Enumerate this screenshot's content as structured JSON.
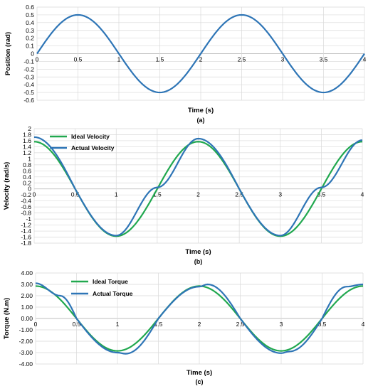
{
  "chart_data": [
    {
      "type": "line",
      "caption": "(a)",
      "xlabel": "Time (s)",
      "ylabel": "Position (rad)",
      "xlim": [
        0,
        4
      ],
      "ylim": [
        -0.6,
        0.6
      ],
      "yticks": [
        "0.6",
        "0.5",
        "0.4",
        "0.3",
        "0.2",
        "0.1",
        "0",
        "-0.1",
        "-0.2",
        "-0.3",
        "-0.4",
        "-0.5",
        "-0.6"
      ],
      "xticks": [
        "0",
        "0.5",
        "1",
        "1.5",
        "2",
        "2.5",
        "3",
        "3.5",
        "4"
      ],
      "grid": true,
      "legend": "none",
      "series": [
        {
          "color": "#2e75b6",
          "amplitude": 0.5,
          "phase_offset": 0,
          "waveform": "sin",
          "x": [
            0,
            0.5,
            1,
            1.5,
            2,
            2.5,
            3,
            3.5,
            4
          ],
          "y": [
            0,
            0.5,
            0,
            -0.5,
            0,
            0.5,
            0,
            -0.5,
            0
          ]
        }
      ]
    },
    {
      "type": "line",
      "caption": "(b)",
      "xlabel": "Time (s)",
      "ylabel": "Velocity (rad/s)",
      "xlim": [
        0,
        4
      ],
      "ylim": [
        -1.8,
        2
      ],
      "yticks": [
        "2",
        "1.8",
        "1.6",
        "1.4",
        "1.2",
        "1",
        "0.8",
        "0.6",
        "0.4",
        "0.2",
        "0",
        "-0.2",
        "-0.4",
        "-0.6",
        "-0.8",
        "-1",
        "-1.2",
        "-1.4",
        "-1.6",
        "-1.8"
      ],
      "xticks": [
        "0",
        "0.5",
        "1",
        "1.5",
        "2",
        "2.5",
        "3",
        "3.5",
        "4"
      ],
      "grid": true,
      "legend": "top-left",
      "series": [
        {
          "name": "Ideal Velocity",
          "color": "#21a84f",
          "amplitude": 1.57,
          "waveform": "cos",
          "x": [
            0,
            0.5,
            1,
            1.5,
            2,
            2.5,
            3,
            3.5,
            4
          ],
          "y": [
            1.57,
            0,
            -1.57,
            0,
            1.57,
            0,
            -1.57,
            0,
            1.57
          ]
        },
        {
          "name": "Actual Velocity",
          "color": "#2e75b6",
          "amplitude": 1.6,
          "waveform": "cos",
          "x": [
            0,
            0.5,
            1,
            1.5,
            2,
            2.5,
            3,
            3.5,
            4
          ],
          "y": [
            1.72,
            0,
            -1.55,
            0.05,
            1.67,
            0,
            -1.55,
            0.05,
            1.62
          ]
        }
      ]
    },
    {
      "type": "line",
      "caption": "(c)",
      "xlabel": "Time (s)",
      "ylabel": "Torque (N.m)",
      "xlim": [
        0,
        4
      ],
      "ylim": [
        -4,
        4
      ],
      "yticks": [
        "4.00",
        "3.00",
        "2.00",
        "1.00",
        "0.00",
        "-1.00",
        "-2.00",
        "-3.00",
        "-4.00"
      ],
      "xticks": [
        "0",
        "0.5",
        "1",
        "1.5",
        "2",
        "2.5",
        "3",
        "3.5",
        "4"
      ],
      "grid": true,
      "legend": "top-left",
      "series": [
        {
          "name": "Ideal Torque",
          "color": "#21a84f",
          "amplitude": 2.85,
          "waveform": "cos",
          "x": [
            0,
            0.5,
            1,
            1.5,
            2,
            2.5,
            3,
            3.5,
            4
          ],
          "y": [
            2.85,
            0,
            -2.85,
            0,
            2.85,
            0,
            -2.85,
            0,
            2.85
          ]
        },
        {
          "name": "Actual Torque",
          "color": "#2e75b6",
          "amplitude": 2.95,
          "waveform": "cos",
          "x": [
            0,
            0.3,
            0.5,
            1,
            1.1,
            1.5,
            2,
            2.1,
            2.5,
            3,
            3.1,
            3.5,
            3.8,
            4
          ],
          "y": [
            3.1,
            2.0,
            0,
            -3.0,
            -3.1,
            0,
            2.8,
            3.0,
            0,
            -3.05,
            -2.9,
            0,
            2.8,
            3.0
          ]
        }
      ]
    }
  ]
}
